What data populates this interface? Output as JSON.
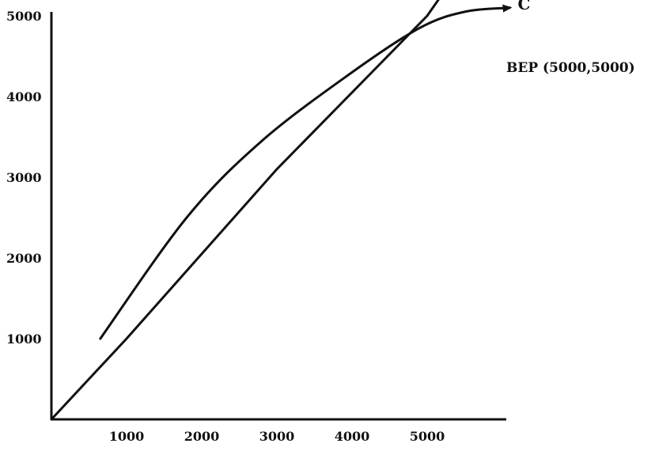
{
  "chart_data": {
    "type": "line",
    "title": "",
    "xlabel": "",
    "ylabel": "",
    "x_ticks": [
      1000,
      2000,
      3000,
      4000,
      5000
    ],
    "y_ticks": [
      1000,
      2000,
      3000,
      4000,
      5000
    ],
    "xlim": [
      0,
      6000
    ],
    "ylim": [
      0,
      5200
    ],
    "grid": false,
    "series": [
      {
        "curve": "straight",
        "points": [
          [
            0,
            0
          ],
          [
            1000,
            1000
          ],
          [
            2000,
            2050
          ],
          [
            3000,
            3100
          ],
          [
            4000,
            4050
          ],
          [
            5000,
            5000
          ],
          [
            5300,
            5400
          ]
        ]
      },
      {
        "name": "C",
        "curve": "smooth",
        "arrow": true,
        "points": [
          [
            650,
            1000
          ],
          [
            1800,
            2500
          ],
          [
            2800,
            3450
          ],
          [
            4000,
            4300
          ],
          [
            4900,
            4850
          ],
          [
            5500,
            5050
          ],
          [
            6100,
            5100
          ]
        ]
      }
    ],
    "annotations": [
      {
        "text": "BEP (5000,5000)",
        "x": 5000,
        "y": 5000
      }
    ],
    "colors": {
      "line": "#111111",
      "background": "#ffffff"
    }
  }
}
